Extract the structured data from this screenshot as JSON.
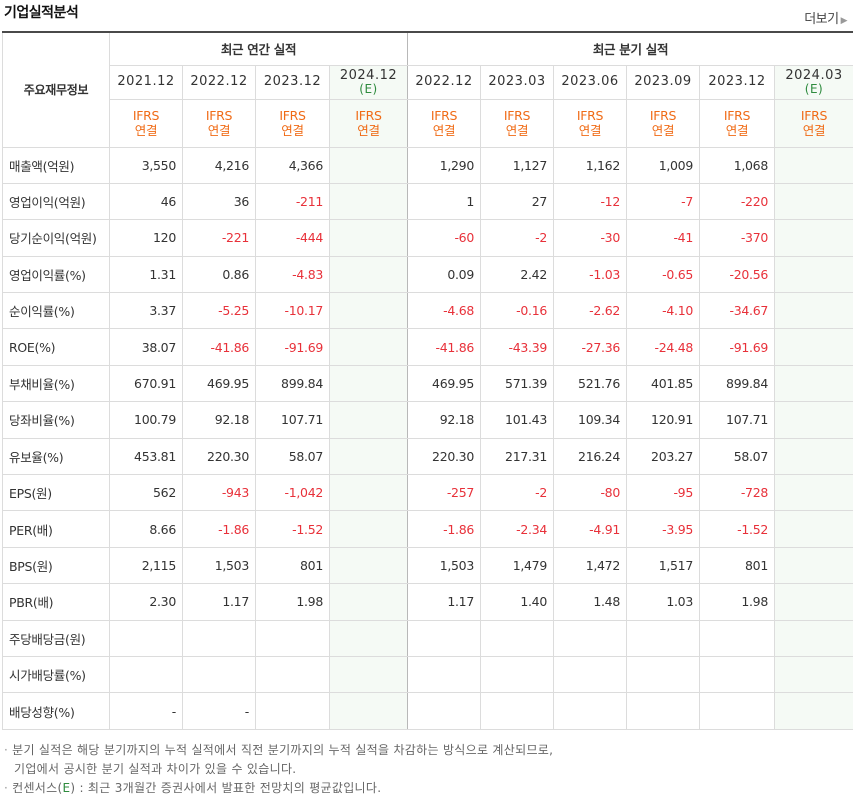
{
  "header": {
    "title": "기업실적분석",
    "more_label": "더보기",
    "more_arrow": "▶"
  },
  "table": {
    "row_header": "주요재무정보",
    "annual_group": "최근 연간 실적",
    "quarter_group": "최근 분기 실적",
    "annual_periods": [
      {
        "date": "2021.12",
        "est": ""
      },
      {
        "date": "2022.12",
        "est": ""
      },
      {
        "date": "2023.12",
        "est": ""
      },
      {
        "date": "2024.12",
        "est": "(E)"
      }
    ],
    "quarter_periods": [
      {
        "date": "2022.12",
        "est": ""
      },
      {
        "date": "2023.03",
        "est": ""
      },
      {
        "date": "2023.06",
        "est": ""
      },
      {
        "date": "2023.09",
        "est": ""
      },
      {
        "date": "2023.12",
        "est": ""
      },
      {
        "date": "2024.03",
        "est": "(E)"
      }
    ],
    "ifrs_top": "IFRS",
    "ifrs_bottom": "연결",
    "rows": [
      {
        "label": "매출액(억원)",
        "annual": [
          "3,550",
          "4,216",
          "4,366",
          ""
        ],
        "quarter": [
          "1,290",
          "1,127",
          "1,162",
          "1,009",
          "1,068",
          ""
        ]
      },
      {
        "label": "영업이익(억원)",
        "annual": [
          "46",
          "36",
          "-211",
          ""
        ],
        "quarter": [
          "1",
          "27",
          "-12",
          "-7",
          "-220",
          ""
        ]
      },
      {
        "label": "당기순이익(억원)",
        "annual": [
          "120",
          "-221",
          "-444",
          ""
        ],
        "quarter": [
          "-60",
          "-2",
          "-30",
          "-41",
          "-370",
          ""
        ]
      },
      {
        "label": "영업이익률(%)",
        "annual": [
          "1.31",
          "0.86",
          "-4.83",
          ""
        ],
        "quarter": [
          "0.09",
          "2.42",
          "-1.03",
          "-0.65",
          "-20.56",
          ""
        ]
      },
      {
        "label": "순이익률(%)",
        "annual": [
          "3.37",
          "-5.25",
          "-10.17",
          ""
        ],
        "quarter": [
          "-4.68",
          "-0.16",
          "-2.62",
          "-4.10",
          "-34.67",
          ""
        ]
      },
      {
        "label": "ROE(%)",
        "annual": [
          "38.07",
          "-41.86",
          "-91.69",
          ""
        ],
        "quarter": [
          "-41.86",
          "-43.39",
          "-27.36",
          "-24.48",
          "-91.69",
          ""
        ]
      },
      {
        "label": "부채비율(%)",
        "annual": [
          "670.91",
          "469.95",
          "899.84",
          ""
        ],
        "quarter": [
          "469.95",
          "571.39",
          "521.76",
          "401.85",
          "899.84",
          ""
        ]
      },
      {
        "label": "당좌비율(%)",
        "annual": [
          "100.79",
          "92.18",
          "107.71",
          ""
        ],
        "quarter": [
          "92.18",
          "101.43",
          "109.34",
          "120.91",
          "107.71",
          ""
        ]
      },
      {
        "label": "유보율(%)",
        "annual": [
          "453.81",
          "220.30",
          "58.07",
          ""
        ],
        "quarter": [
          "220.30",
          "217.31",
          "216.24",
          "203.27",
          "58.07",
          ""
        ]
      },
      {
        "label": "EPS(원)",
        "annual": [
          "562",
          "-943",
          "-1,042",
          ""
        ],
        "quarter": [
          "-257",
          "-2",
          "-80",
          "-95",
          "-728",
          ""
        ]
      },
      {
        "label": "PER(배)",
        "annual": [
          "8.66",
          "-1.86",
          "-1.52",
          ""
        ],
        "quarter": [
          "-1.86",
          "-2.34",
          "-4.91",
          "-3.95",
          "-1.52",
          ""
        ]
      },
      {
        "label": "BPS(원)",
        "annual": [
          "2,115",
          "1,503",
          "801",
          ""
        ],
        "quarter": [
          "1,503",
          "1,479",
          "1,472",
          "1,517",
          "801",
          ""
        ]
      },
      {
        "label": "PBR(배)",
        "annual": [
          "2.30",
          "1.17",
          "1.98",
          ""
        ],
        "quarter": [
          "1.17",
          "1.40",
          "1.48",
          "1.03",
          "1.98",
          ""
        ]
      },
      {
        "label": "주당배당금(원)",
        "annual": [
          "",
          "",
          "",
          ""
        ],
        "quarter": [
          "",
          "",
          "",
          "",
          "",
          ""
        ]
      },
      {
        "label": "시가배당률(%)",
        "annual": [
          "",
          "",
          "",
          ""
        ],
        "quarter": [
          "",
          "",
          "",
          "",
          "",
          ""
        ]
      },
      {
        "label": "배당성향(%)",
        "annual": [
          "-",
          "-",
          "",
          ""
        ],
        "quarter": [
          "",
          "",
          "",
          "",
          "",
          ""
        ]
      }
    ]
  },
  "notes": {
    "bullet": "·",
    "line1": "분기 실적은 해당 분기까지의 누적 실적에서 직전 분기까지의 누적 실적을 차감하는 방식으로 계산되므로,",
    "line2": "기업에서 공시한 분기 실적과 차이가 있을 수 있습니다.",
    "line3_pre": "컨센서스(",
    "line3_e": "E",
    "line3_post": ") : 최근 3개월간 증권사에서 발표한 전망치의 평균값입니다."
  },
  "colors": {
    "negative": "#e8313a",
    "ifrs": "#f06b16",
    "estimate": "#2e8b3e",
    "estimate_bg": "#f5faf5"
  }
}
